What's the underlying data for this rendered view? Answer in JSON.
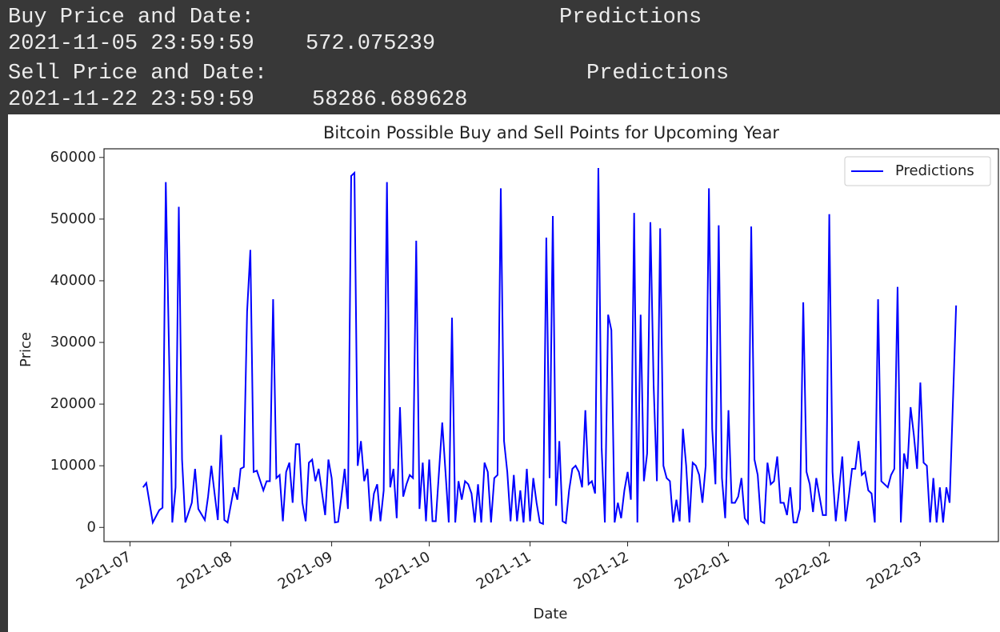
{
  "output": {
    "buy_header": "Buy Price and Date:",
    "buy_column": "Predictions",
    "buy_date": "2021-11-05 23:59:59",
    "buy_value": 572.075239,
    "sell_header": "Sell Price and Date:",
    "sell_column": "Predictions",
    "sell_date": "2021-11-22 23:59:59",
    "sell_value": 58286.689628
  },
  "chart_data": {
    "type": "line",
    "title": "Bitcoin Possible Buy and Sell Points for Upcoming Year",
    "x_label": "Date",
    "y_label": "Price",
    "legend": "upper right",
    "grid": false,
    "xlim": [
      "2021-06-23",
      "2022-03-25"
    ],
    "xticks": [
      "2021-07",
      "2021-08",
      "2021-09",
      "2021-10",
      "2021-11",
      "2021-12",
      "2022-01",
      "2022-02",
      "2022-03"
    ],
    "ylim": [
      -2300,
      61400
    ],
    "yticks": [
      0,
      10000,
      20000,
      30000,
      40000,
      50000,
      60000
    ],
    "x": [
      "2021-07-05",
      "2021-07-06",
      "2021-07-08",
      "2021-07-10",
      "2021-07-11",
      "2021-07-12",
      "2021-07-14",
      "2021-07-15",
      "2021-07-16",
      "2021-07-17",
      "2021-07-18",
      "2021-07-20",
      "2021-07-21",
      "2021-07-22",
      "2021-07-24",
      "2021-07-25",
      "2021-07-26",
      "2021-07-27",
      "2021-07-28",
      "2021-07-29",
      "2021-07-30",
      "2021-07-31",
      "2021-08-02",
      "2021-08-03",
      "2021-08-04",
      "2021-08-05",
      "2021-08-06",
      "2021-08-07",
      "2021-08-08",
      "2021-08-09",
      "2021-08-11",
      "2021-08-12",
      "2021-08-13",
      "2021-08-14",
      "2021-08-15",
      "2021-08-16",
      "2021-08-17",
      "2021-08-18",
      "2021-08-19",
      "2021-08-20",
      "2021-08-21",
      "2021-08-22",
      "2021-08-23",
      "2021-08-24",
      "2021-08-25",
      "2021-08-26",
      "2021-08-27",
      "2021-08-28",
      "2021-08-30",
      "2021-08-31",
      "2021-09-01",
      "2021-09-02",
      "2021-09-03",
      "2021-09-04",
      "2021-09-05",
      "2021-09-06",
      "2021-09-07",
      "2021-09-08",
      "2021-09-09",
      "2021-09-10",
      "2021-09-11",
      "2021-09-12",
      "2021-09-13",
      "2021-09-14",
      "2021-09-15",
      "2021-09-16",
      "2021-09-17",
      "2021-09-18",
      "2021-09-19",
      "2021-09-20",
      "2021-09-21",
      "2021-09-22",
      "2021-09-23",
      "2021-09-24",
      "2021-09-25",
      "2021-09-26",
      "2021-09-27",
      "2021-09-28",
      "2021-09-29",
      "2021-09-30",
      "2021-10-01",
      "2021-10-02",
      "2021-10-03",
      "2021-10-04",
      "2021-10-05",
      "2021-10-06",
      "2021-10-07",
      "2021-10-08",
      "2021-10-09",
      "2021-10-10",
      "2021-10-11",
      "2021-10-12",
      "2021-10-13",
      "2021-10-14",
      "2021-10-15",
      "2021-10-16",
      "2021-10-17",
      "2021-10-18",
      "2021-10-19",
      "2021-10-20",
      "2021-10-21",
      "2021-10-22",
      "2021-10-23",
      "2021-10-24",
      "2021-10-25",
      "2021-10-26",
      "2021-10-27",
      "2021-10-28",
      "2021-10-29",
      "2021-10-30",
      "2021-10-31",
      "2021-11-01",
      "2021-11-02",
      "2021-11-03",
      "2021-11-04",
      "2021-11-05",
      "2021-11-06",
      "2021-11-07",
      "2021-11-08",
      "2021-11-09",
      "2021-11-10",
      "2021-11-11",
      "2021-11-12",
      "2021-11-13",
      "2021-11-14",
      "2021-11-15",
      "2021-11-16",
      "2021-11-17",
      "2021-11-18",
      "2021-11-19",
      "2021-11-20",
      "2021-11-21",
      "2021-11-22",
      "2021-11-23",
      "2021-11-24",
      "2021-11-25",
      "2021-11-26",
      "2021-11-27",
      "2021-11-28",
      "2021-11-29",
      "2021-11-30",
      "2021-12-01",
      "2021-12-02",
      "2021-12-03",
      "2021-12-04",
      "2021-12-05",
      "2021-12-06",
      "2021-12-07",
      "2021-12-08",
      "2021-12-09",
      "2021-12-10",
      "2021-12-11",
      "2021-12-12",
      "2021-12-13",
      "2021-12-14",
      "2021-12-15",
      "2021-12-16",
      "2021-12-17",
      "2021-12-18",
      "2021-12-19",
      "2021-12-20",
      "2021-12-21",
      "2021-12-22",
      "2021-12-23",
      "2021-12-24",
      "2021-12-25",
      "2021-12-26",
      "2021-12-27",
      "2021-12-28",
      "2021-12-29",
      "2021-12-30",
      "2021-12-31",
      "2022-01-01",
      "2022-01-02",
      "2022-01-03",
      "2022-01-04",
      "2022-01-05",
      "2022-01-06",
      "2022-01-07",
      "2022-01-08",
      "2022-01-09",
      "2022-01-10",
      "2022-01-11",
      "2022-01-12",
      "2022-01-13",
      "2022-01-14",
      "2022-01-15",
      "2022-01-16",
      "2022-01-17",
      "2022-01-18",
      "2022-01-19",
      "2022-01-20",
      "2022-01-21",
      "2022-01-22",
      "2022-01-23",
      "2022-01-24",
      "2022-01-25",
      "2022-01-26",
      "2022-01-27",
      "2022-01-28",
      "2022-01-29",
      "2022-01-30",
      "2022-01-31",
      "2022-02-01",
      "2022-02-02",
      "2022-02-03",
      "2022-02-04",
      "2022-02-05",
      "2022-02-06",
      "2022-02-07",
      "2022-02-08",
      "2022-02-09",
      "2022-02-10",
      "2022-02-11",
      "2022-02-12",
      "2022-02-13",
      "2022-02-14",
      "2022-02-15",
      "2022-02-16",
      "2022-02-17",
      "2022-02-18",
      "2022-02-19",
      "2022-02-20",
      "2022-02-21",
      "2022-02-22",
      "2022-02-23",
      "2022-02-24",
      "2022-02-25",
      "2022-02-26",
      "2022-02-27",
      "2022-02-28",
      "2022-03-01",
      "2022-03-02",
      "2022-03-03",
      "2022-03-04",
      "2022-03-05",
      "2022-03-06",
      "2022-03-07",
      "2022-03-08",
      "2022-03-09",
      "2022-03-10",
      "2022-03-11",
      "2022-03-12"
    ],
    "series": [
      {
        "name": "Predictions",
        "color": "#0000ff",
        "values": [
          6500,
          7200,
          800,
          2800,
          3200,
          56000,
          800,
          6500,
          52000,
          11000,
          800,
          4000,
          9500,
          3000,
          1200,
          5000,
          10000,
          5500,
          1200,
          15000,
          1200,
          800,
          6500,
          4500,
          9500,
          9800,
          35000,
          45000,
          9000,
          9200,
          6000,
          7500,
          7500,
          37000,
          8000,
          8500,
          1000,
          9000,
          10500,
          4000,
          13500,
          13500,
          4000,
          1000,
          10500,
          11000,
          7500,
          9500,
          2000,
          11000,
          8000,
          800,
          900,
          5000,
          9500,
          3000,
          57000,
          57500,
          10000,
          14000,
          7500,
          9500,
          1000,
          5500,
          7000,
          1000,
          6000,
          56000,
          6500,
          9500,
          1500,
          19500,
          5000,
          7000,
          8500,
          8000,
          46500,
          3000,
          10500,
          1000,
          11000,
          1000,
          1000,
          9000,
          17000,
          9000,
          800,
          34000,
          800,
          7500,
          4500,
          7500,
          7000,
          5500,
          800,
          7000,
          800,
          10500,
          9000,
          800,
          8000,
          8500,
          55000,
          14000,
          9000,
          1000,
          8500,
          1000,
          6000,
          800,
          9500,
          1000,
          8000,
          4000,
          800,
          572.075239,
          47000,
          8000,
          50500,
          3500,
          14000,
          1000,
          700,
          6000,
          9500,
          10000,
          9000,
          6500,
          19000,
          7000,
          7500,
          5500,
          58286.689628,
          13000,
          800,
          34500,
          32000,
          800,
          4000,
          1500,
          6000,
          9000,
          4500,
          51000,
          800,
          34500,
          7500,
          12000,
          49500,
          23000,
          7500,
          48500,
          10000,
          8000,
          7500,
          800,
          4500,
          1000,
          16000,
          10000,
          800,
          10500,
          10000,
          8500,
          4000,
          10000,
          55000,
          16000,
          7000,
          49000,
          8000,
          1500,
          19000,
          4000,
          4000,
          5000,
          8000,
          1500,
          700,
          48800,
          11000,
          8500,
          1000,
          700,
          10500,
          7000,
          7500,
          11500,
          4000,
          4000,
          2000,
          6500,
          800,
          800,
          3000,
          36500,
          9000,
          7000,
          2500,
          8000,
          5000,
          2000,
          2000,
          50800,
          9000,
          1000,
          6000,
          11500,
          1000,
          5000,
          9500,
          9500,
          14000,
          8500,
          9000,
          6000,
          5500,
          800,
          37000,
          7500,
          7000,
          6500,
          8500,
          9500,
          39000,
          800,
          12000,
          9500,
          19500,
          15000,
          9500,
          23500,
          10500,
          10000,
          800,
          8000,
          800,
          6500,
          800,
          6500,
          4000,
          20000,
          36000
        ]
      }
    ]
  }
}
